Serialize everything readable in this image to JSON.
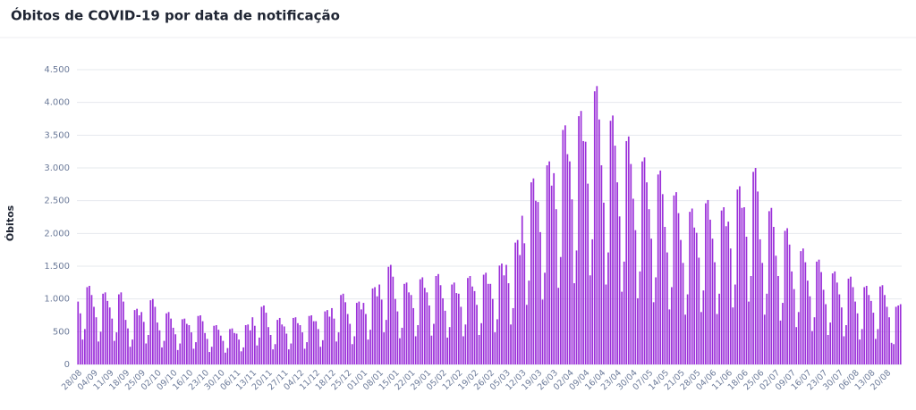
{
  "chart_data": {
    "type": "bar",
    "title": "Óbitos de COVID-19 por data de notificação",
    "y_label": "Óbitos",
    "color": "#9b30d9",
    "grid": true,
    "ylim": [
      0,
      4500
    ],
    "yticks": [
      0,
      500,
      {
        "value": 1000,
        "label": "1.000"
      },
      {
        "value": 1500,
        "label": "1.500"
      },
      {
        "value": 2000,
        "label": "2.000"
      },
      {
        "value": 2500,
        "label": "2.500"
      },
      {
        "value": 3000,
        "label": "3.000"
      },
      {
        "value": 3500,
        "label": "3.500"
      },
      {
        "value": 4000,
        "label": "4.000"
      },
      {
        "value": 4500,
        "label": "4.500"
      }
    ],
    "categories": [
      "28/08",
      null,
      null,
      null,
      null,
      null,
      null,
      "04/09",
      null,
      null,
      null,
      null,
      null,
      null,
      "11/09",
      null,
      null,
      null,
      null,
      null,
      null,
      "18/09",
      null,
      null,
      null,
      null,
      null,
      null,
      "25/09",
      null,
      null,
      null,
      null,
      null,
      null,
      "02/10",
      null,
      null,
      null,
      null,
      null,
      null,
      "09/10",
      null,
      null,
      null,
      null,
      null,
      null,
      "16/10",
      null,
      null,
      null,
      null,
      null,
      null,
      "23/10",
      null,
      null,
      null,
      null,
      null,
      null,
      "30/10",
      null,
      null,
      null,
      null,
      null,
      null,
      "06/11",
      null,
      null,
      null,
      null,
      null,
      null,
      "13/11",
      null,
      null,
      null,
      null,
      null,
      null,
      "20/11",
      null,
      null,
      null,
      null,
      null,
      null,
      "27/11",
      null,
      null,
      null,
      null,
      null,
      null,
      "04/12",
      null,
      null,
      null,
      null,
      null,
      null,
      "11/12",
      null,
      null,
      null,
      null,
      null,
      null,
      "18/12",
      null,
      null,
      null,
      null,
      null,
      null,
      "25/12",
      null,
      null,
      null,
      null,
      null,
      null,
      "01/01",
      null,
      null,
      null,
      null,
      null,
      null,
      "08/01",
      null,
      null,
      null,
      null,
      null,
      null,
      "15/01",
      null,
      null,
      null,
      null,
      null,
      null,
      "22/01",
      null,
      null,
      null,
      null,
      null,
      null,
      "29/01",
      null,
      null,
      null,
      null,
      null,
      null,
      "05/02",
      null,
      null,
      null,
      null,
      null,
      null,
      "12/02",
      null,
      null,
      null,
      null,
      null,
      null,
      "19/02",
      null,
      null,
      null,
      null,
      null,
      null,
      "26/02",
      null,
      null,
      null,
      null,
      null,
      null,
      "05/03",
      null,
      null,
      null,
      null,
      null,
      null,
      "12/03",
      null,
      null,
      null,
      null,
      null,
      null,
      "19/03",
      null,
      null,
      null,
      null,
      null,
      null,
      "26/03",
      null,
      null,
      null,
      null,
      null,
      null,
      "02/04",
      null,
      null,
      null,
      null,
      null,
      null,
      "09/04",
      null,
      null,
      null,
      null,
      null,
      null,
      "16/04",
      null,
      null,
      null,
      null,
      null,
      null,
      "23/04",
      null,
      null,
      null,
      null,
      null,
      null,
      "30/04",
      null,
      null,
      null,
      null,
      null,
      null,
      "07/05",
      null,
      null,
      null,
      null,
      null,
      null,
      "14/05",
      null,
      null,
      null,
      null,
      null,
      null,
      "21/05",
      null,
      null,
      null,
      null,
      null,
      null,
      "28/05",
      null,
      null,
      null,
      null,
      null,
      null,
      "04/06",
      null,
      null,
      null,
      null,
      null,
      null,
      "11/06",
      null,
      null,
      null,
      null,
      null,
      null,
      "18/06",
      null,
      null,
      null,
      null,
      null,
      null,
      "25/06",
      null,
      null,
      null,
      null,
      null,
      null,
      "02/07",
      null,
      null,
      null,
      null,
      null,
      null,
      "09/07",
      null,
      null,
      null,
      null,
      null,
      null,
      "16/07",
      null,
      null,
      null,
      null,
      null,
      null,
      "23/07",
      null,
      null,
      null,
      null,
      null,
      null,
      "30/07",
      null,
      null,
      null,
      null,
      null,
      null,
      "06/08",
      null,
      null,
      null,
      null,
      null,
      null,
      "13/08",
      null,
      null,
      null,
      null,
      null,
      null,
      "20/08",
      null,
      null,
      null,
      null,
      null,
      null
    ],
    "values": [
      960,
      780,
      380,
      540,
      1180,
      1200,
      1060,
      880,
      720,
      350,
      500,
      1080,
      1100,
      970,
      870,
      700,
      360,
      490,
      1070,
      1100,
      960,
      680,
      550,
      270,
      380,
      830,
      850,
      750,
      800,
      650,
      320,
      450,
      980,
      1000,
      880,
      640,
      520,
      260,
      360,
      780,
      800,
      700,
      560,
      460,
      220,
      320,
      690,
      700,
      620,
      600,
      490,
      240,
      340,
      740,
      750,
      660,
      480,
      390,
      190,
      270,
      590,
      600,
      530,
      440,
      360,
      180,
      250,
      540,
      550,
      480,
      470,
      380,
      200,
      260,
      600,
      610,
      520,
      720,
      590,
      290,
      410,
      880,
      900,
      790,
      570,
      450,
      230,
      310,
      680,
      710,
      610,
      580,
      470,
      230,
      320,
      710,
      720,
      630,
      600,
      490,
      240,
      340,
      740,
      750,
      660,
      660,
      540,
      270,
      370,
      810,
      830,
      730,
      860,
      700,
      350,
      490,
      1060,
      1080,
      950,
      770,
      620,
      310,
      430,
      940,
      960,
      840,
      940,
      770,
      380,
      530,
      1160,
      1180,
      1040,
      1220,
      990,
      490,
      680,
      1490,
      1520,
      1340,
      1000,
      810,
      400,
      560,
      1230,
      1250,
      1100,
      1060,
      860,
      430,
      600,
      1300,
      1330,
      1170,
      1100,
      900,
      440,
      620,
      1350,
      1380,
      1210,
      1010,
      820,
      410,
      570,
      1220,
      1250,
      1090,
      1080,
      880,
      430,
      610,
      1320,
      1350,
      1190,
      1120,
      910,
      450,
      630,
      1370,
      1400,
      1230,
      1230,
      1000,
      490,
      690,
      1510,
      1540,
      1360,
      1520,
      1240,
      610,
      860,
      1860,
      1900,
      1670,
      2270,
      1850,
      910,
      1280,
      2780,
      2840,
      2500,
      2480,
      2020,
      990,
      1400,
      3040,
      3100,
      2730,
      2920,
      2370,
      1170,
      1640,
      3580,
      3650,
      3210,
      3100,
      2520,
      1240,
      1740,
      3790,
      3870,
      3410,
      3400,
      2760,
      1360,
      1910,
      4170,
      4250,
      3740,
      3040,
      2470,
      1220,
      1710,
      3720,
      3800,
      3340,
      2780,
      2260,
      1110,
      1570,
      3410,
      3480,
      3060,
      2530,
      2050,
      1010,
      1420,
      3100,
      3160,
      2780,
      2370,
      1920,
      950,
      1330,
      2900,
      2960,
      2600,
      2100,
      1710,
      840,
      1180,
      2580,
      2630,
      2310,
      1900,
      1550,
      760,
      1070,
      2330,
      2380,
      2090,
      2010,
      1630,
      800,
      1130,
      2460,
      2510,
      2210,
      1920,
      1560,
      770,
      1080,
      2350,
      2400,
      2110,
      2180,
      1770,
      870,
      1220,
      2670,
      2720,
      2390,
      2400,
      1950,
      960,
      1350,
      2940,
      3000,
      2640,
      1910,
      1550,
      760,
      1080,
      2340,
      2390,
      2100,
      1660,
      1350,
      670,
      940,
      2040,
      2080,
      1830,
      1420,
      1150,
      570,
      800,
      1730,
      1770,
      1560,
      1280,
      1040,
      510,
      720,
      1570,
      1600,
      1410,
      1140,
      920,
      450,
      640,
      1390,
      1420,
      1250,
      1070,
      870,
      430,
      600,
      1310,
      1340,
      1180,
      960,
      780,
      380,
      540,
      1180,
      1200,
      1060,
      970,
      790,
      390,
      540,
      1190,
      1210,
      1060,
      880,
      720,
      330,
      310,
      880,
      900,
      920
    ]
  }
}
